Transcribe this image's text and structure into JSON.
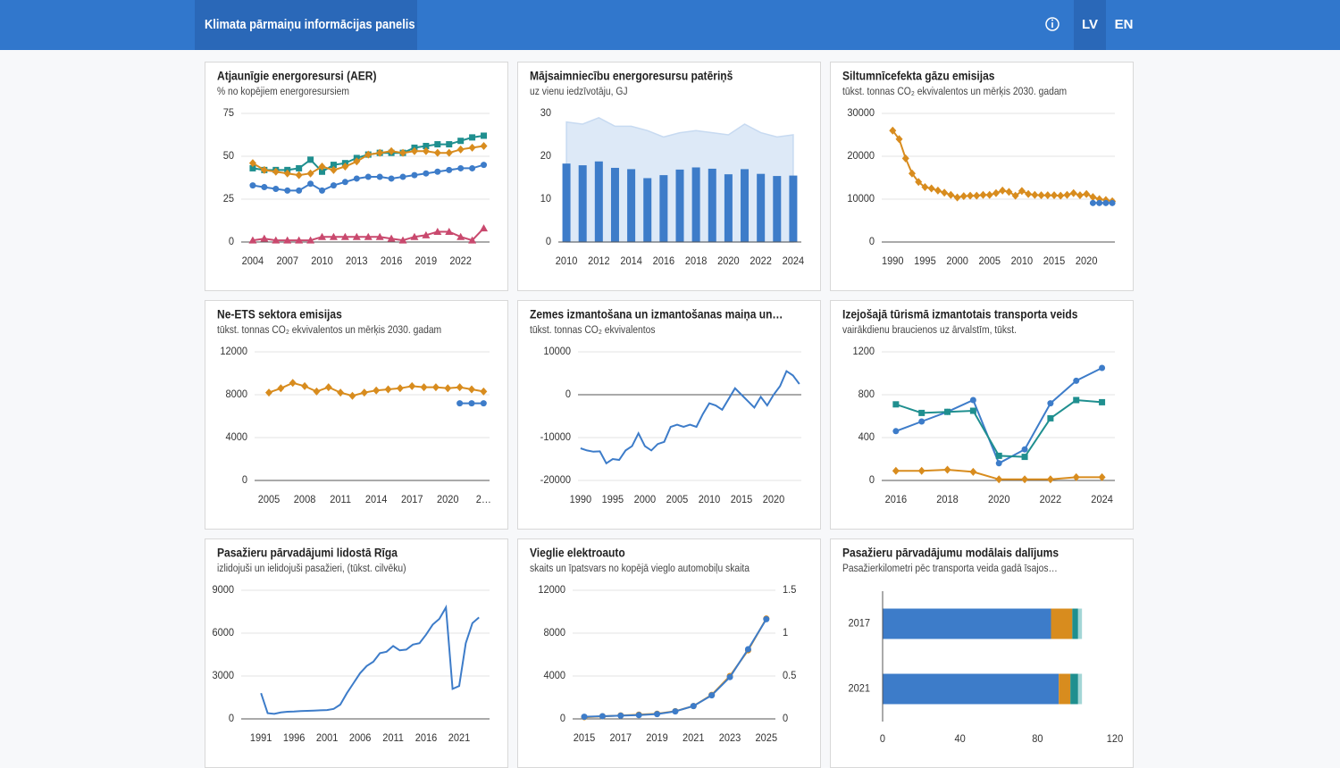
{
  "header": {
    "title": "Klimata pārmaiņu informācijas panelis",
    "languages": [
      "LV",
      "EN"
    ]
  },
  "chart_data": [
    {
      "type": "line",
      "title": "Atjaunīgie energoresursi (AER)",
      "subtitle": "% no kopējiem energoresursiem",
      "x": [
        2004,
        2005,
        2006,
        2007,
        2008,
        2009,
        2010,
        2011,
        2012,
        2013,
        2014,
        2015,
        2016,
        2017,
        2018,
        2019,
        2020,
        2021,
        2022,
        2023,
        2024
      ],
      "xlim": [
        2003,
        2024.5
      ],
      "xticks": [
        2004,
        2007,
        2010,
        2013,
        2016,
        2019,
        2022
      ],
      "ylim": [
        0,
        75
      ],
      "yticks": [
        0,
        25,
        50,
        75
      ],
      "grid": true,
      "series": [
        {
          "color": "#1f8f8f",
          "marker": "square",
          "values": [
            43,
            42,
            42,
            42,
            43,
            48,
            41,
            45,
            46,
            49,
            51,
            52,
            52,
            52,
            55,
            56,
            57,
            57,
            59,
            61,
            62
          ]
        },
        {
          "color": "#d88c1e",
          "marker": "diamond",
          "values": [
            46,
            42,
            41,
            40,
            39,
            40,
            44,
            42,
            44,
            47,
            51,
            52,
            53,
            52,
            53,
            53,
            52,
            52,
            54,
            55,
            56
          ]
        },
        {
          "color": "#3d7cc9",
          "marker": "circle",
          "values": [
            33,
            32,
            31,
            30,
            30,
            34,
            30,
            33,
            35,
            37,
            38,
            38,
            37,
            38,
            39,
            40,
            41,
            42,
            43,
            43,
            45
          ]
        },
        {
          "color": "#c9496e",
          "marker": "triangle",
          "values": [
            1,
            2,
            1,
            1,
            1,
            1,
            3,
            3,
            3,
            3,
            3,
            3,
            2,
            1,
            3,
            4,
            6,
            6,
            3,
            1,
            8
          ]
        }
      ]
    },
    {
      "type": "bar",
      "title": "Mājsaimniecību energoresursu patēriņš",
      "subtitle": "uz vienu iedzīvotāju, GJ",
      "categories": [
        2010,
        null,
        2012,
        null,
        2014,
        null,
        2016,
        null,
        2018,
        null,
        2020,
        null,
        2022,
        null,
        2024
      ],
      "ylim": [
        0,
        30
      ],
      "yticks": [
        0,
        10,
        20,
        30
      ],
      "grid": false,
      "series": [
        {
          "kind": "area",
          "color": "#dde9f7",
          "values": [
            28,
            27.5,
            29,
            27,
            27,
            26,
            24.5,
            25.5,
            26,
            25.5,
            25,
            27.5,
            25.5,
            24.5,
            25
          ]
        },
        {
          "kind": "bar",
          "color": "#3d7cc9",
          "values": [
            18.3,
            17.9,
            18.8,
            17.3,
            17.0,
            14.9,
            15.6,
            16.9,
            17.4,
            17.1,
            15.8,
            17.0,
            15.9,
            15.4,
            15.5
          ]
        }
      ]
    },
    {
      "type": "line",
      "title": "Siltumnīcefekta gāzu emisijas",
      "subtitle": "tūkst. tonnas CO₂ ekvivalentos un mērķis 2030. gadam",
      "x": [
        1990,
        1991,
        1992,
        1993,
        1994,
        1995,
        1996,
        1997,
        1998,
        1999,
        2000,
        2001,
        2002,
        2003,
        2004,
        2005,
        2006,
        2007,
        2008,
        2009,
        2010,
        2011,
        2012,
        2013,
        2014,
        2015,
        2016,
        2017,
        2018,
        2019,
        2020,
        2021,
        2022,
        2023,
        2024
      ],
      "xlim": [
        1988.3,
        2024.4
      ],
      "xticks": [
        1990,
        1995,
        2000,
        2005,
        2010,
        2015,
        2020
      ],
      "ylim": [
        0,
        30000
      ],
      "yticks": [
        0,
        10000,
        20000,
        30000
      ],
      "grid": true,
      "series": [
        {
          "color": "#d88c1e",
          "marker": "diamond",
          "values": [
            26000,
            24000,
            19500,
            16000,
            14000,
            12800,
            12500,
            12000,
            11500,
            11000,
            10400,
            10700,
            10800,
            10800,
            11000,
            11000,
            11400,
            12000,
            11700,
            10800,
            11900,
            11200,
            11000,
            10900,
            10900,
            10900,
            10800,
            11000,
            11400,
            10900,
            11200,
            10500,
            10000,
            9800,
            9500
          ]
        },
        {
          "color": "#3d7cc9",
          "marker": "circle",
          "x": [
            2021,
            2022,
            2023,
            2024
          ],
          "values": [
            9100,
            9100,
            9100,
            9100
          ]
        }
      ]
    },
    {
      "type": "line",
      "title": "Ne-ETS sektora emisijas",
      "subtitle": "tūkst. tonnas CO₂ ekvivalentos un mērķis 2030. gadam",
      "x": [
        2005,
        2006,
        2007,
        2008,
        2009,
        2010,
        2011,
        2012,
        2013,
        2014,
        2015,
        2016,
        2017,
        2018,
        2019,
        2020,
        2021,
        2022,
        2023
      ],
      "xlim": [
        2003.8,
        2023.5
      ],
      "xticks": [
        2005,
        2008,
        2011,
        2014,
        2017,
        2020,
        {
          "value": 2023,
          "label": "2…"
        }
      ],
      "ylim": [
        0,
        12000
      ],
      "yticks": [
        0,
        4000,
        8000,
        12000
      ],
      "grid": true,
      "series": [
        {
          "color": "#d88c1e",
          "marker": "diamond",
          "values": [
            8200,
            8600,
            9100,
            8800,
            8300,
            8700,
            8200,
            7900,
            8200,
            8400,
            8500,
            8600,
            8800,
            8700,
            8700,
            8600,
            8700,
            8500,
            8300
          ]
        },
        {
          "color": "#3d7cc9",
          "marker": "circle",
          "x": [
            2021,
            2022,
            2023
          ],
          "values": [
            7200,
            7200,
            7200
          ]
        }
      ]
    },
    {
      "type": "line",
      "title": "Zemes izmantošana un izmantošanas maiņa un…",
      "subtitle": "tūkst. tonnas CO₂ ekvivalentos",
      "x": [
        1990,
        1991,
        1992,
        1993,
        1994,
        1995,
        1996,
        1997,
        1998,
        1999,
        2000,
        2001,
        2002,
        2003,
        2004,
        2005,
        2006,
        2007,
        2008,
        2009,
        2010,
        2011,
        2012,
        2013,
        2014,
        2015,
        2016,
        2017,
        2018,
        2019,
        2020,
        2021,
        2022,
        2023,
        2024
      ],
      "xlim": [
        1989.6,
        2024.3
      ],
      "xticks": [
        1990,
        1995,
        2000,
        2005,
        2010,
        2015,
        2020
      ],
      "ylim": [
        -20000,
        10000
      ],
      "yticks": [
        -20000,
        -10000,
        0,
        10000
      ],
      "grid": true,
      "series": [
        {
          "color": "#3d7cc9",
          "values": [
            -12500,
            -13000,
            -13300,
            -13200,
            -16000,
            -15000,
            -15200,
            -13000,
            -12000,
            -9000,
            -12000,
            -13000,
            -11500,
            -11000,
            -7500,
            -7000,
            -7500,
            -7000,
            -7500,
            -4500,
            -2000,
            -2500,
            -3500,
            -1000,
            1500,
            0,
            -1500,
            -3000,
            -500,
            -2500,
            0,
            2000,
            5500,
            4500,
            2500
          ]
        }
      ]
    },
    {
      "type": "line",
      "title": "Izejošajā tūrismā izmantotais transporta veids",
      "subtitle": "vairākdienu braucienos uz ārvalstīm, tūkst.",
      "x": [
        2016,
        2017,
        2018,
        2019,
        2020,
        2021,
        2022,
        2023,
        2024
      ],
      "xlim": [
        2015.45,
        2024.5
      ],
      "xticks": [
        2016,
        2018,
        2020,
        2022,
        2024
      ],
      "ylim": [
        0,
        1200
      ],
      "yticks": [
        0,
        400,
        800,
        1200
      ],
      "grid": true,
      "series": [
        {
          "color": "#3d7cc9",
          "marker": "circle",
          "values": [
            460,
            550,
            640,
            750,
            160,
            290,
            720,
            930,
            1050
          ]
        },
        {
          "color": "#1f8f8f",
          "marker": "square",
          "values": [
            710,
            630,
            640,
            650,
            230,
            220,
            580,
            750,
            730
          ]
        },
        {
          "color": "#d88c1e",
          "marker": "diamond",
          "values": [
            90,
            90,
            100,
            80,
            10,
            10,
            10,
            30,
            30
          ]
        }
      ]
    },
    {
      "type": "line",
      "title": "Pasažieru pārvadājumi lidostā Rīga",
      "subtitle": "izlidojuši un ielidojuši pasažieri, (tūkst. cilvēku)",
      "x": [
        1991,
        1992,
        1993,
        1994,
        1995,
        1996,
        1997,
        1998,
        1999,
        2000,
        2001,
        2002,
        2003,
        2004,
        2005,
        2006,
        2007,
        2008,
        2009,
        2010,
        2011,
        2012,
        2013,
        2014,
        2015,
        2016,
        2017,
        2018,
        2019,
        2020,
        2021,
        2022,
        2023,
        2024
      ],
      "xlim": [
        1988.0,
        2025.6
      ],
      "xticks": [
        1991,
        1996,
        2001,
        2006,
        2011,
        2016,
        2021
      ],
      "ylim": [
        0,
        9000
      ],
      "yticks": [
        0,
        3000,
        6000,
        9000
      ],
      "grid": true,
      "series": [
        {
          "color": "#3d7cc9",
          "values": [
            1800,
            400,
            350,
            450,
            500,
            520,
            550,
            560,
            580,
            600,
            620,
            700,
            1000,
            1800,
            2500,
            3200,
            3700,
            4000,
            4600,
            4700,
            5100,
            4800,
            4850,
            5200,
            5300,
            5900,
            6600,
            7000,
            7800,
            2100,
            2300,
            5300,
            6700,
            7100
          ]
        }
      ]
    },
    {
      "type": "line",
      "title": "Vieglie elektroauto",
      "subtitle": "skaits un īpatsvars no kopējā vieglo automobiļu skaita",
      "x": [
        2015,
        2016,
        2017,
        2018,
        2019,
        2020,
        2021,
        2022,
        2023,
        2024,
        2025
      ],
      "xlim": [
        2014.36,
        2025.5
      ],
      "xticks": [
        2015,
        2017,
        2019,
        2021,
        2023,
        2025
      ],
      "ylim": [
        0,
        12000
      ],
      "yticks": [
        0,
        4000,
        8000,
        12000
      ],
      "y2lim": [
        0,
        1.5
      ],
      "y2ticks": [
        0,
        0.5,
        1,
        1.5
      ],
      "grid": true,
      "series": [
        {
          "color": "#d88c1e",
          "marker": "circle",
          "axis": "y2",
          "values": [
            0.02,
            0.03,
            0.04,
            0.05,
            0.06,
            0.09,
            0.15,
            0.28,
            0.5,
            0.8,
            1.17
          ]
        },
        {
          "color": "#3d7cc9",
          "marker": "circle",
          "values": [
            200,
            250,
            300,
            350,
            450,
            700,
            1200,
            2200,
            3900,
            6500,
            9300
          ]
        }
      ]
    },
    {
      "type": "barh",
      "title": "Pasažieru pārvadājumu modālais dalījums",
      "subtitle": "Pasažierkilometri pēc transporta veida gadā īsajos…",
      "categories": [
        2017,
        2021
      ],
      "xlim": [
        0,
        120
      ],
      "xticks": [
        0,
        40,
        80,
        120
      ],
      "grid": false,
      "series": [
        {
          "color": "#3d7cc9",
          "values": [
            87,
            91
          ]
        },
        {
          "color": "#d88c1e",
          "values": [
            11,
            6
          ]
        },
        {
          "color": "#1f8f8f",
          "values": [
            3,
            4
          ]
        },
        {
          "color": "#a3d6d6",
          "values": [
            2,
            2
          ]
        }
      ]
    }
  ]
}
